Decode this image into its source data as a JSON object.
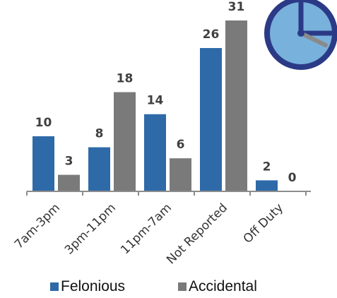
{
  "chart_data": {
    "type": "bar",
    "title": "",
    "xlabel": "",
    "ylabel": "",
    "categories": [
      "7am-3pm",
      "3pm-11pm",
      "11pm-7am",
      "Not Reported",
      "Off Duty"
    ],
    "series": [
      {
        "name": "Felonious",
        "values": [
          10,
          8,
          14,
          26,
          2
        ]
      },
      {
        "name": "Accidental",
        "values": [
          3,
          18,
          6,
          31,
          0
        ]
      }
    ],
    "ylim": [
      0,
      31
    ],
    "grid": false,
    "legend_position": "bottom",
    "colors": {
      "Felonious": "#2e6aa8",
      "Accidental": "#7a7a7a"
    }
  },
  "decor": {
    "icon": "clock-icon",
    "clock_face": "#78b1dc",
    "clock_rim": "#2b3a86"
  }
}
